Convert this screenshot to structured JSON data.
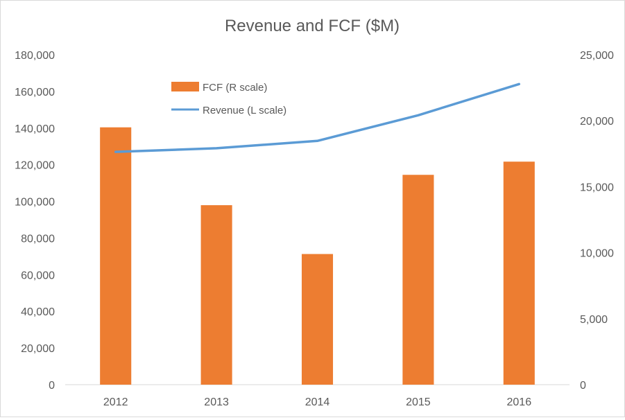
{
  "chart_data": {
    "type": "bar",
    "title": "Revenue and FCF ($M)",
    "categories": [
      "2012",
      "2013",
      "2014",
      "2015",
      "2016"
    ],
    "series": [
      {
        "name": "FCF (R scale)",
        "type": "bar",
        "axis": "right",
        "color": "#ED7D31",
        "values": [
          19500,
          13600,
          9900,
          15900,
          16900
        ]
      },
      {
        "name": "Revenue (L scale)",
        "type": "line",
        "axis": "left",
        "color": "#5B9BD5",
        "values": [
          127000,
          129000,
          133000,
          147000,
          164000
        ]
      }
    ],
    "y_left": {
      "ylim": [
        0,
        180000
      ],
      "ticks": [
        0,
        20000,
        40000,
        60000,
        80000,
        100000,
        120000,
        140000,
        160000,
        180000
      ],
      "tick_labels": [
        "0",
        "20,000",
        "40,000",
        "60,000",
        "80,000",
        "100,000",
        "120,000",
        "140,000",
        "160,000",
        "180,000"
      ]
    },
    "y_right": {
      "ylim": [
        0,
        25000
      ],
      "ticks": [
        0,
        5000,
        10000,
        15000,
        20000,
        25000
      ],
      "tick_labels": [
        "0",
        "5,000",
        "10,000",
        "15,000",
        "20,000",
        "25,000"
      ]
    },
    "grid": false,
    "legend_position": "top-left-inside"
  }
}
